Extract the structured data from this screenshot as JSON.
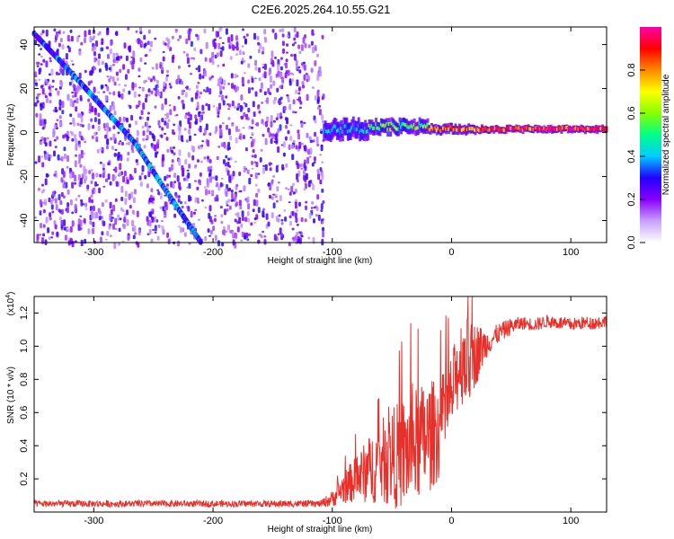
{
  "title": "C2E6.2025.264.10.55.G21",
  "chart_data": [
    {
      "type": "heatmap",
      "name": "spectrogram",
      "xlabel": "Height of straight line (km)",
      "ylabel": "Frequency (Hz)",
      "xlim": [
        -350,
        130
      ],
      "ylim": [
        -50,
        48
      ],
      "xticks": [
        -300,
        -200,
        -100,
        0,
        100
      ],
      "yticks": [
        -40,
        -20,
        0,
        20,
        40
      ],
      "colorbar": {
        "label": "Normalized spectral amplitude",
        "range": [
          0.0,
          1.0
        ],
        "ticks": [
          0.0,
          0.2,
          0.4,
          0.6,
          0.8
        ],
        "colors": [
          "#ffffff",
          "#c8a0ff",
          "#8800ff",
          "#2200ff",
          "#00ccff",
          "#00ff88",
          "#88ff00",
          "#ffff00",
          "#ff8800",
          "#ff0000",
          "#ff00aa"
        ]
      },
      "noise_region": {
        "x_range": [
          -350,
          -108
        ],
        "amplitude": 0.15
      },
      "diagonal_track": {
        "points": [
          [
            -350,
            45
          ],
          [
            -310,
            22
          ],
          [
            -290,
            10
          ],
          [
            -265,
            -5
          ],
          [
            -245,
            -22
          ],
          [
            -225,
            -38
          ],
          [
            -210,
            -50
          ]
        ],
        "peak_amplitude": 0.4
      },
      "signal_band": {
        "segments": [
          {
            "x": [
              -108,
              -70
            ],
            "center_hz": 1.5,
            "width_hz": 8,
            "amplitude": 0.45
          },
          {
            "x": [
              -70,
              -20
            ],
            "center_hz": 2.5,
            "width_hz": 6,
            "amplitude": 0.6
          },
          {
            "x": [
              -20,
              20
            ],
            "center_hz": 1.5,
            "width_hz": 4,
            "amplitude": 0.85
          },
          {
            "x": [
              20,
              130
            ],
            "center_hz": 1.5,
            "width_hz": 3,
            "amplitude": 0.95
          }
        ]
      }
    },
    {
      "type": "line",
      "name": "snr",
      "xlabel": "Height of straight line (km)",
      "ylabel": "SNR (10 * v/v)",
      "y_multiplier": "(x10",
      "y_multiplier_exp": "4",
      "y_multiplier_close": ")",
      "xlim": [
        -350,
        130
      ],
      "ylim": [
        0.0,
        1.3
      ],
      "xticks": [
        -300,
        -200,
        -100,
        0,
        100
      ],
      "yticks": [
        0.2,
        0.4,
        0.6,
        0.8,
        1.0,
        1.2
      ],
      "color": "#e8302a",
      "series": [
        {
          "name": "SNR",
          "x": [
            -350,
            -300,
            -250,
            -200,
            -150,
            -110,
            -100,
            -90,
            -80,
            -70,
            -60,
            -50,
            -40,
            -30,
            -20,
            -10,
            0,
            5,
            10,
            15,
            20,
            30,
            40,
            50,
            60,
            70,
            80,
            90,
            100,
            110,
            120,
            130
          ],
          "y": [
            0.05,
            0.05,
            0.05,
            0.05,
            0.05,
            0.05,
            0.08,
            0.15,
            0.2,
            0.25,
            0.3,
            0.33,
            0.35,
            0.4,
            0.45,
            0.5,
            0.7,
            0.85,
            0.95,
            0.9,
            0.95,
            1.02,
            1.08,
            1.12,
            1.14,
            1.13,
            1.15,
            1.14,
            1.13,
            1.14,
            1.14,
            1.15
          ],
          "noise": [
            0.02,
            0.02,
            0.02,
            0.02,
            0.02,
            0.02,
            0.05,
            0.1,
            0.14,
            0.2,
            0.25,
            0.3,
            0.35,
            0.35,
            0.35,
            0.3,
            0.25,
            0.25,
            0.3,
            0.25,
            0.2,
            0.08,
            0.06,
            0.05,
            0.04,
            0.04,
            0.04,
            0.04,
            0.04,
            0.04,
            0.04,
            0.04
          ]
        }
      ]
    }
  ]
}
